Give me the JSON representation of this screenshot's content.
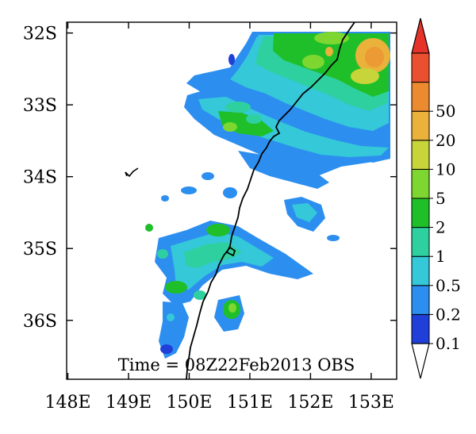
{
  "map": {
    "type": "precipitation-map",
    "time_label": "Time = 08Z22Feb2013 OBS",
    "x_axis": {
      "range": [
        147.98,
        153.42
      ],
      "ticks": [
        148,
        149,
        150,
        151,
        152,
        153
      ],
      "tick_labels": [
        "148E",
        "149E",
        "150E",
        "151E",
        "152E",
        "153E"
      ]
    },
    "y_axis": {
      "range": [
        -36.82,
        -31.85
      ],
      "ticks": [
        -32,
        -33,
        -34,
        -35,
        -36
      ],
      "tick_labels": [
        "32S",
        "33S",
        "34S",
        "35S",
        "36S"
      ]
    },
    "colorbar": {
      "levels": [
        "0.1",
        "0.2",
        "0.5",
        "1",
        "2",
        "5",
        "10",
        "20",
        "50"
      ],
      "colors": [
        "#1f3fd8",
        "#2c8ff0",
        "#34c8d8",
        "#2fd0a0",
        "#1fbf2a",
        "#7ed630",
        "#c7d43a",
        "#eab23a",
        "#ec8a30",
        "#ea5030"
      ],
      "under_color": "#ffffff",
      "over_color": "#e5332a"
    },
    "palette": {
      "coast": "#000000",
      "frame": "#000000"
    }
  }
}
